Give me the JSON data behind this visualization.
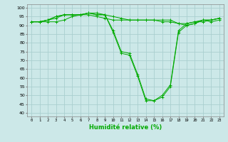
{
  "xlabel": "Humidité relative (%)",
  "ylabel": "",
  "background_color": "#cce8e8",
  "grid_color": "#aacfcf",
  "line_color": "#00aa00",
  "x_ticks": [
    0,
    1,
    2,
    3,
    4,
    5,
    6,
    7,
    8,
    9,
    10,
    11,
    12,
    13,
    14,
    15,
    16,
    17,
    18,
    19,
    20,
    21,
    22,
    23
  ],
  "y_ticks": [
    40,
    45,
    50,
    55,
    60,
    65,
    70,
    75,
    80,
    85,
    90,
    95,
    100
  ],
  "ylim": [
    38,
    102
  ],
  "xlim": [
    -0.5,
    23.5
  ],
  "series": [
    [
      92,
      92,
      92,
      92,
      93,
      95,
      96,
      96,
      95,
      94,
      93,
      93,
      93,
      93,
      93,
      93,
      93,
      93,
      91,
      91,
      92,
      92,
      93,
      94
    ],
    [
      92,
      92,
      93,
      94,
      96,
      96,
      96,
      97,
      97,
      96,
      87,
      75,
      74,
      62,
      48,
      47,
      50,
      56,
      87,
      91,
      92,
      93,
      93,
      94
    ],
    [
      92,
      92,
      93,
      95,
      96,
      96,
      96,
      97,
      96,
      96,
      86,
      74,
      73,
      61,
      47,
      47,
      49,
      55,
      86,
      90,
      91,
      93,
      92,
      93
    ],
    [
      92,
      92,
      93,
      95,
      96,
      96,
      96,
      97,
      96,
      96,
      95,
      94,
      93,
      93,
      93,
      93,
      92,
      92,
      91,
      90,
      91,
      93,
      93,
      94
    ]
  ]
}
